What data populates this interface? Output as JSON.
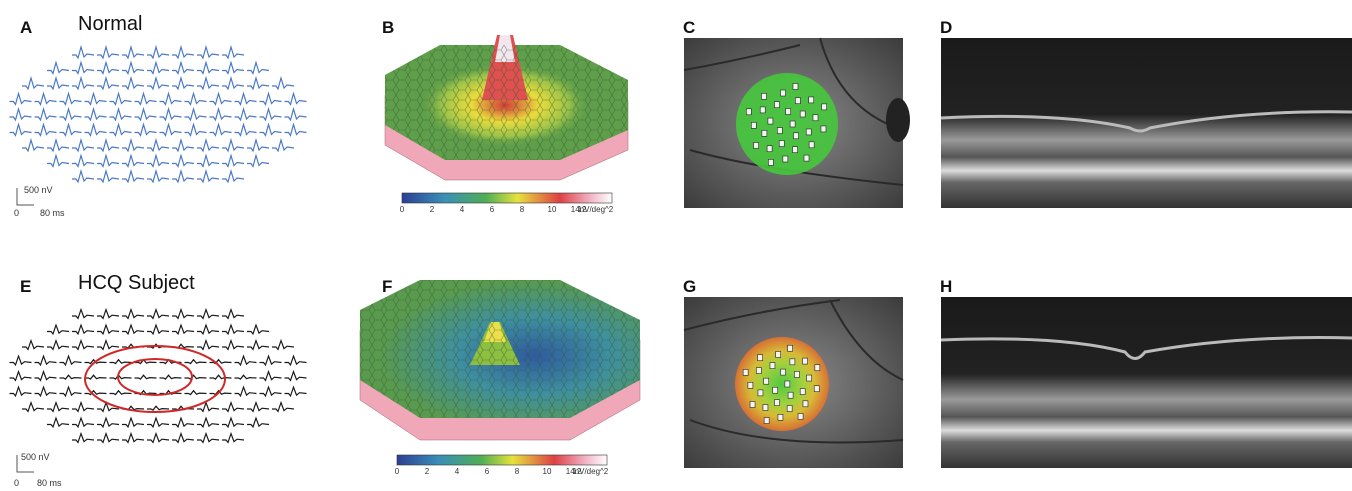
{
  "panels": [
    {
      "letter": "A",
      "title": "Normal"
    },
    {
      "letter": "B"
    },
    {
      "letter": "C"
    },
    {
      "letter": "D"
    },
    {
      "letter": "E",
      "title": "HCQ Subject"
    },
    {
      "letter": "F"
    },
    {
      "letter": "G"
    },
    {
      "letter": "H"
    }
  ],
  "scale_bar": {
    "amplitude": "500 nV",
    "origin": 0,
    "time": "80 ms"
  },
  "colorbar": {
    "ticks": [
      0,
      2,
      4,
      6,
      8,
      10,
      12
    ],
    "end_label": "14nV/deg^2"
  }
}
